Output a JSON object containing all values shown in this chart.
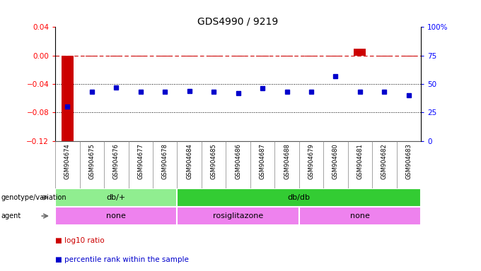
{
  "title": "GDS4990 / 9219",
  "samples": [
    "GSM904674",
    "GSM904675",
    "GSM904676",
    "GSM904677",
    "GSM904678",
    "GSM904684",
    "GSM904685",
    "GSM904686",
    "GSM904687",
    "GSM904688",
    "GSM904679",
    "GSM904680",
    "GSM904681",
    "GSM904682",
    "GSM904683"
  ],
  "log10_ratio": [
    -0.122,
    -0.001,
    -0.001,
    -0.001,
    -0.001,
    -0.001,
    -0.001,
    -0.001,
    -0.001,
    -0.001,
    -0.001,
    -0.001,
    0.01,
    -0.001,
    -0.001
  ],
  "percentile": [
    30,
    43,
    47,
    43,
    43,
    44,
    43,
    42,
    46,
    43,
    43,
    57,
    43,
    43,
    40
  ],
  "ylim_left": [
    -0.12,
    0.04
  ],
  "ylim_right": [
    0,
    100
  ],
  "bar_color": "#CC0000",
  "dot_color": "#0000CC",
  "dashed_line_color": "#CC0000",
  "dot_grid_color": "#000000",
  "genotype_groups": [
    {
      "label": "db/+",
      "start": 0,
      "end": 5,
      "color": "#90EE90"
    },
    {
      "label": "db/db",
      "start": 5,
      "end": 15,
      "color": "#33CC33"
    }
  ],
  "agent_groups": [
    {
      "label": "none",
      "start": 0,
      "end": 5,
      "color": "#EE82EE"
    },
    {
      "label": "rosiglitazone",
      "start": 5,
      "end": 10,
      "color": "#EE82EE"
    },
    {
      "label": "none",
      "start": 10,
      "end": 15,
      "color": "#EE82EE"
    }
  ],
  "legend_items": [
    {
      "label": "log10 ratio",
      "color": "#CC0000"
    },
    {
      "label": "percentile rank within the sample",
      "color": "#0000CC"
    }
  ]
}
